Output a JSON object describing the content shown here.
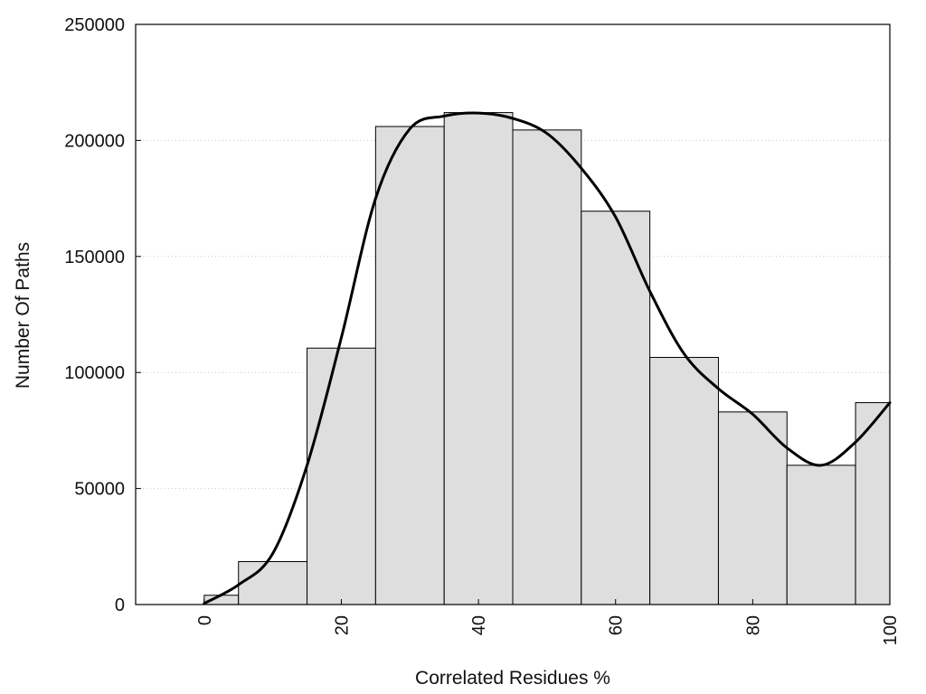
{
  "chart_data": {
    "type": "bar",
    "xlabel": "Correlated Residues %",
    "ylabel": "Number Of Paths",
    "xlim": [
      -10,
      100
    ],
    "ylim": [
      0,
      250000
    ],
    "x_ticks": [
      "0",
      "20",
      "40",
      "60",
      "80",
      "100"
    ],
    "y_ticks": [
      "0",
      "50000",
      "100000",
      "150000",
      "200000",
      "250000"
    ],
    "grid": "horizontal-dotted",
    "bar_color": "#dedede",
    "line_color": "#000000",
    "bars": [
      {
        "x_start": 0,
        "x_end": 5,
        "value": 4000
      },
      {
        "x_start": 5,
        "x_end": 15,
        "value": 18500
      },
      {
        "x_start": 15,
        "x_end": 25,
        "value": 110500
      },
      {
        "x_start": 25,
        "x_end": 35,
        "value": 206000
      },
      {
        "x_start": 35,
        "x_end": 45,
        "value": 212000
      },
      {
        "x_start": 45,
        "x_end": 55,
        "value": 204500
      },
      {
        "x_start": 55,
        "x_end": 65,
        "value": 169500
      },
      {
        "x_start": 65,
        "x_end": 75,
        "value": 106500
      },
      {
        "x_start": 75,
        "x_end": 85,
        "value": 83000
      },
      {
        "x_start": 85,
        "x_end": 95,
        "value": 60000
      },
      {
        "x_start": 95,
        "x_end": 100,
        "value": 87000
      }
    ],
    "curve": {
      "x": [
        0,
        5,
        10,
        15,
        20,
        25,
        30,
        35,
        40,
        45,
        50,
        55,
        60,
        65,
        70,
        75,
        80,
        85,
        90,
        95,
        100
      ],
      "y": [
        500,
        8500,
        22000,
        60000,
        115000,
        175000,
        205000,
        210500,
        211800,
        209500,
        203000,
        188000,
        167000,
        135000,
        108000,
        93000,
        82000,
        67500,
        60000,
        70000,
        87000
      ]
    }
  }
}
